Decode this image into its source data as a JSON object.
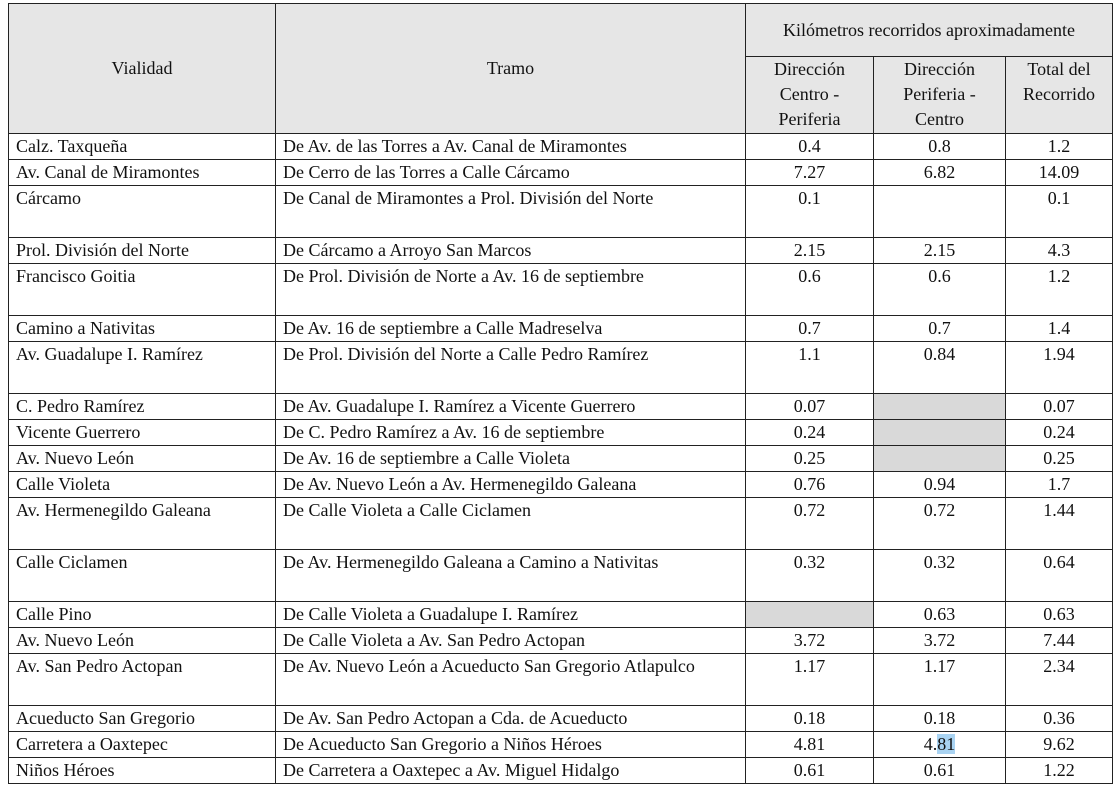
{
  "headers": {
    "vialidad": "Vialidad",
    "tramo": "Tramo",
    "group": "Kilómetros recorridos aproximadamente",
    "centro_periferia": "Dirección Centro - Periferia",
    "periferia_centro": "Dirección Periferia - Centro",
    "total": "Total del Recorrido"
  },
  "rows": [
    {
      "vialidad": "Calz. Taxqueña",
      "tramo": "De Av. de las Torres a Av. Canal de Miramontes",
      "cp": "0.4",
      "pc": "0.8",
      "total": "1.2"
    },
    {
      "vialidad": "Av. Canal de Miramontes",
      "tramo": "De Cerro de las Torres a Calle Cárcamo",
      "cp": "7.27",
      "pc": "6.82",
      "total": "14.09"
    },
    {
      "vialidad": "Cárcamo",
      "tramo": "De Canal de Miramontes a Prol. División del Norte",
      "cp": "0.1",
      "pc": "",
      "total": "0.1"
    },
    {
      "vialidad": "Prol. División del Norte",
      "tramo": "De Cárcamo a Arroyo San Marcos",
      "cp": "2.15",
      "pc": "2.15",
      "total": "4.3"
    },
    {
      "vialidad": "Francisco Goitia",
      "tramo": "De Prol. División de Norte a Av. 16 de septiembre",
      "cp": "0.6",
      "pc": "0.6",
      "total": "1.2"
    },
    {
      "vialidad": "Camino a Nativitas",
      "tramo": "De Av. 16 de septiembre a Calle Madreselva",
      "cp": "0.7",
      "pc": "0.7",
      "total": "1.4"
    },
    {
      "vialidad": "Av. Guadalupe I. Ramírez",
      "tramo": "De Prol. División del Norte a Calle Pedro Ramírez",
      "cp": "1.1",
      "pc": "0.84",
      "total": "1.94"
    },
    {
      "vialidad": "C. Pedro Ramírez",
      "tramo": "De Av. Guadalupe I. Ramírez a Vicente Guerrero",
      "cp": "0.07",
      "pc": "",
      "total": "0.07",
      "shade": "pc"
    },
    {
      "vialidad": "Vicente Guerrero",
      "tramo": "De C. Pedro Ramírez a Av. 16 de septiembre",
      "cp": "0.24",
      "pc": "",
      "total": "0.24",
      "shade": "pc"
    },
    {
      "vialidad": "Av. Nuevo León",
      "tramo": "De Av. 16 de septiembre a Calle Violeta",
      "cp": "0.25",
      "pc": "",
      "total": "0.25",
      "shade": "pc"
    },
    {
      "vialidad": "Calle Violeta",
      "tramo": "De Av. Nuevo León a Av. Hermenegildo Galeana",
      "cp": "0.76",
      "pc": "0.94",
      "total": "1.7"
    },
    {
      "vialidad": "Av. Hermenegildo Galeana",
      "tramo": "De Calle Violeta a Calle Ciclamen",
      "cp": "0.72",
      "pc": "0.72",
      "total": "1.44"
    },
    {
      "vialidad": "Calle Ciclamen",
      "tramo": "De Av. Hermenegildo Galeana a Camino a Nativitas",
      "cp": "0.32",
      "pc": "0.32",
      "total": "0.64"
    },
    {
      "vialidad": "Calle Pino",
      "tramo": "De Calle Violeta a Guadalupe I. Ramírez",
      "cp": "",
      "pc": "0.63",
      "total": "0.63",
      "shade": "cp"
    },
    {
      "vialidad": "Av. Nuevo León",
      "tramo": "De Calle Violeta a Av. San Pedro Actopan",
      "cp": "3.72",
      "pc": "3.72",
      "total": "7.44"
    },
    {
      "vialidad": "Av. San Pedro Actopan",
      "tramo": "De Av. Nuevo León a Acueducto San Gregorio Atlapulco",
      "cp": "1.17",
      "pc": "1.17",
      "total": "2.34"
    },
    {
      "vialidad": "Acueducto San Gregorio",
      "tramo": "De Av. San Pedro Actopan a Cda. de Acueducto",
      "cp": "0.18",
      "pc": "0.18",
      "total": "0.36"
    },
    {
      "vialidad": "Carretera a Oaxtepec",
      "tramo": "De Acueducto San Gregorio a Niños Héroes",
      "cp": "4.81",
      "pc": "4.81",
      "total": "9.62",
      "selected_text": "81"
    },
    {
      "vialidad": "Niños Héroes",
      "tramo": "De Carretera a Oaxtepec a Av. Miguel Hidalgo",
      "cp": "0.61",
      "pc": "0.61",
      "total": "1.22"
    }
  ],
  "colors": {
    "header_bg": "#e6e6e6",
    "empty_cell": "#d9d9d9",
    "selection": "#a9d3f2"
  }
}
